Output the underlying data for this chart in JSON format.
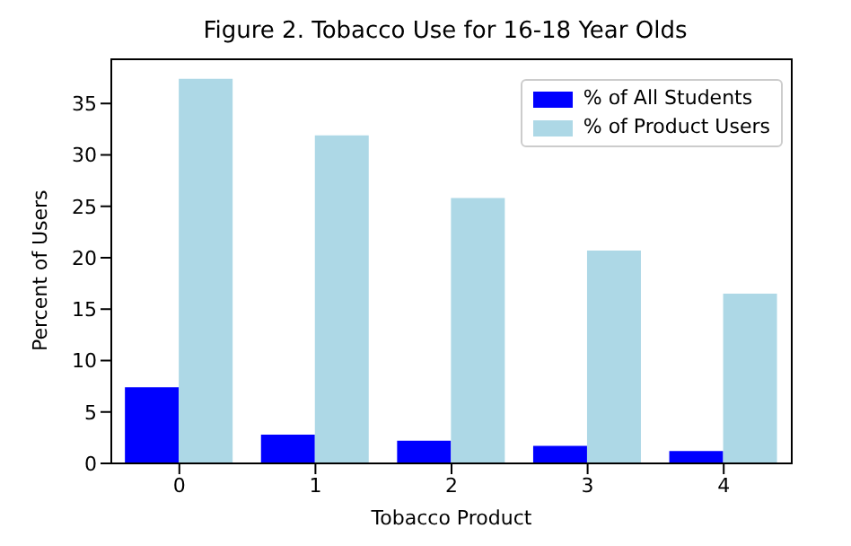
{
  "chart_data": {
    "type": "bar",
    "title": "Figure 2. Tobacco Use for 16-18 Year Olds",
    "xlabel": "Tobacco Product",
    "ylabel": "Percent of Users",
    "categories": [
      "0",
      "1",
      "2",
      "3",
      "4"
    ],
    "series": [
      {
        "name": "% of All Students",
        "color": "#0000ff",
        "values": [
          7.4,
          2.8,
          2.2,
          1.7,
          1.2
        ]
      },
      {
        "name": "% of Product Users",
        "color": "#add8e6",
        "values": [
          37.4,
          31.9,
          25.8,
          20.7,
          16.5
        ]
      }
    ],
    "ylim": [
      0,
      39.3
    ],
    "yticks": [
      0,
      5,
      10,
      15,
      20,
      25,
      30,
      35
    ],
    "grid": false,
    "legend": "top right"
  }
}
